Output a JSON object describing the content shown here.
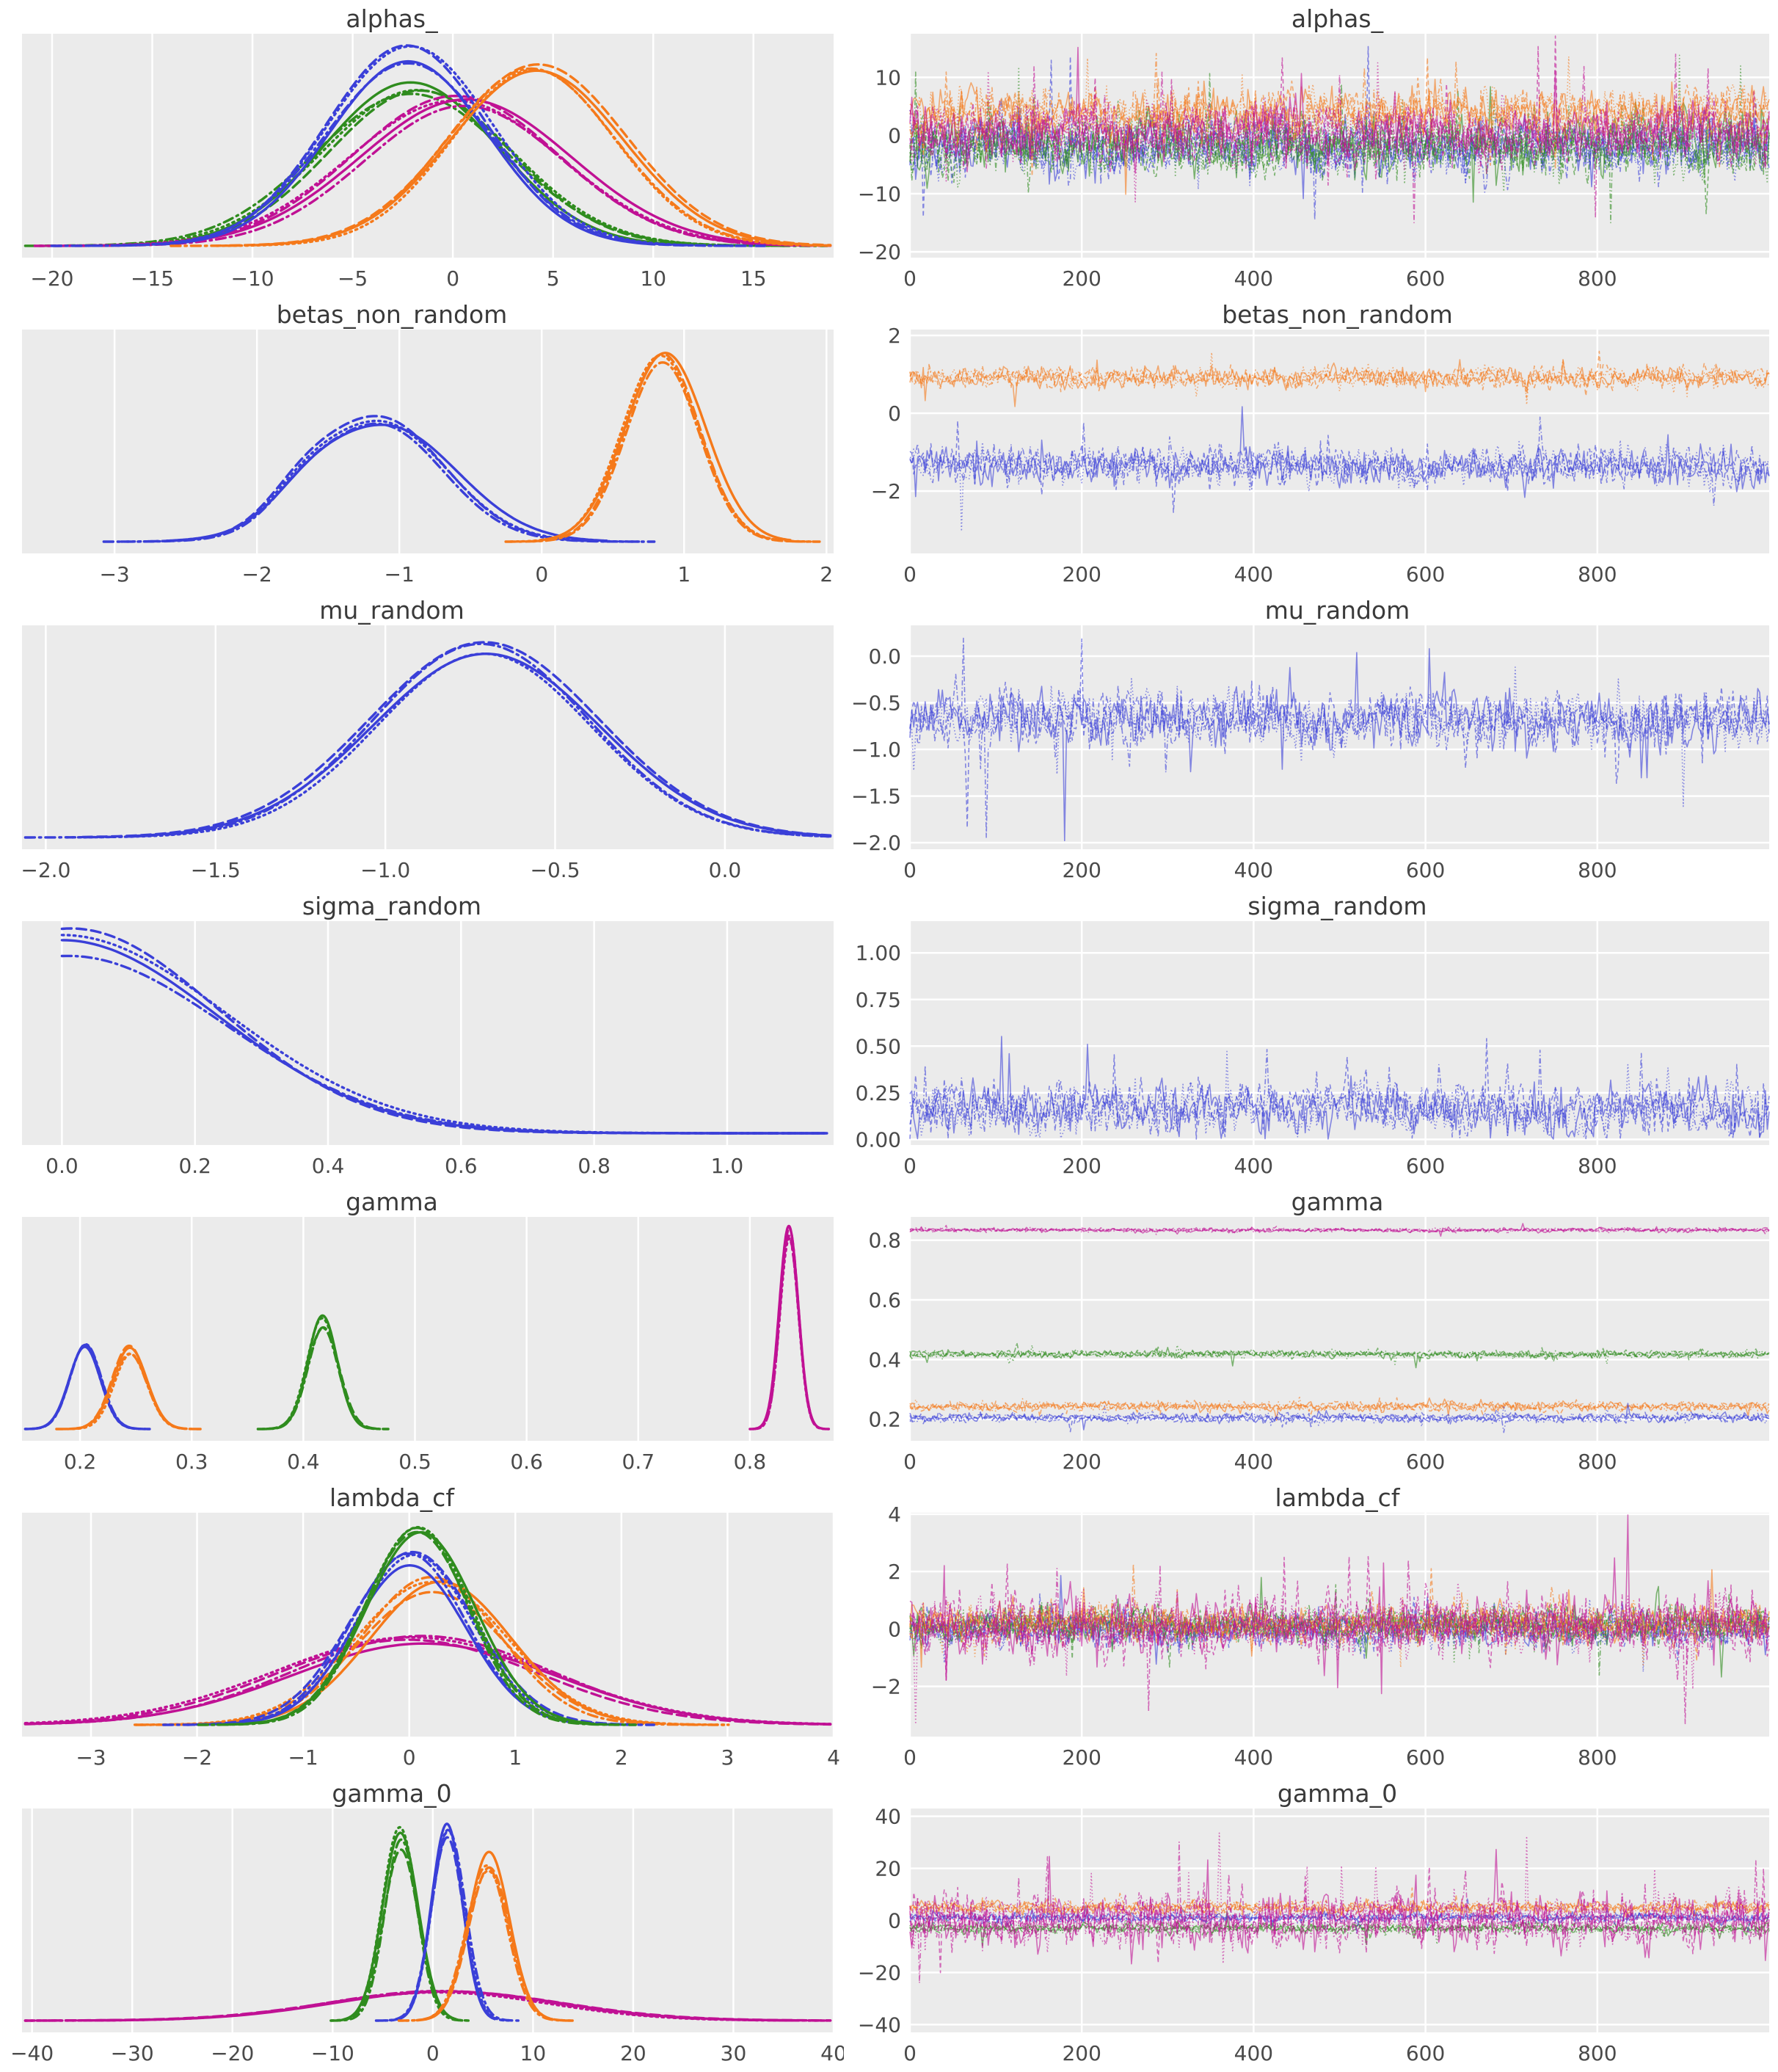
{
  "chart_data": {
    "figure_kind": "mcmc-posterior-kde-and-trace-grid",
    "grid": {
      "rows": 7,
      "cols": 2,
      "left_col": "kernel density estimate",
      "right_col": "sampled trace"
    },
    "palette": {
      "blue": "#3a3fd8",
      "orange": "#f5791a",
      "green": "#2f8c1e",
      "magenta": "#c01194"
    },
    "plot_style": {
      "bg": "#ebebeb",
      "grid": "#ffffff",
      "tick_color": "#4a4a4a",
      "chain_dashes": [
        "solid",
        "dashed",
        "dotted",
        "dashdot"
      ],
      "chains_per_series": 4
    },
    "trace_x": {
      "xlim": [
        0,
        1000
      ],
      "xticks": [
        {
          "v": 0,
          "label": "0"
        },
        {
          "v": 200,
          "label": "200"
        },
        {
          "v": 400,
          "label": "400"
        },
        {
          "v": 600,
          "label": "600"
        },
        {
          "v": 800,
          "label": "800"
        }
      ]
    },
    "rows": [
      {
        "title": "alphas_",
        "kde": {
          "type": "kde",
          "xlim": [
            -21.5,
            19
          ],
          "xticks": [
            {
              "v": -20,
              "label": "−20"
            },
            {
              "v": -15,
              "label": "−15"
            },
            {
              "v": -10,
              "label": "−10"
            },
            {
              "v": -5,
              "label": "−5"
            },
            {
              "v": 0,
              "label": "0"
            },
            {
              "v": 5,
              "label": "5"
            },
            {
              "v": 10,
              "label": "10"
            },
            {
              "v": 15,
              "label": "15"
            }
          ],
          "series": [
            {
              "color": "green",
              "mean": -1.8,
              "sd": 4.6,
              "height": 0.8
            },
            {
              "color": "magenta",
              "mean": 0.3,
              "sd": 5.0,
              "height": 0.74
            },
            {
              "color": "blue",
              "mean": -2.2,
              "sd": 4.0,
              "height": 0.98
            },
            {
              "color": "orange",
              "mean": 4.2,
              "sd": 4.3,
              "height": 0.96
            }
          ]
        },
        "trace": {
          "type": "trace",
          "ylim": [
            -21,
            17.5
          ],
          "yticks": [
            {
              "v": 10,
              "label": "10"
            },
            {
              "v": 0,
              "label": "0"
            },
            {
              "v": -10,
              "label": "−10"
            },
            {
              "v": -20,
              "label": "−20"
            }
          ],
          "series": [
            {
              "color": "blue",
              "mean": -2,
              "amp": 5.0,
              "spike": 0.03
            },
            {
              "color": "green",
              "mean": -1.8,
              "amp": 5.4,
              "spike": 0.03
            },
            {
              "color": "orange",
              "mean": 3.8,
              "amp": 4.8,
              "spike": 0.03
            },
            {
              "color": "magenta",
              "mean": 0.4,
              "amp": 5.2,
              "spike": 0.03
            }
          ]
        }
      },
      {
        "title": "betas_non_random",
        "kde": {
          "type": "kde",
          "xlim": [
            -3.65,
            2.05
          ],
          "xticks": [
            {
              "v": -3,
              "label": "−3"
            },
            {
              "v": -2,
              "label": "−2"
            },
            {
              "v": -1,
              "label": "−1"
            },
            {
              "v": 0,
              "label": "0"
            },
            {
              "v": 1,
              "label": "1"
            },
            {
              "v": 2,
              "label": "2"
            }
          ],
          "series": [
            {
              "color": "blue",
              "mean": -1.12,
              "sd": 0.47,
              "height": 0.62,
              "bump": {
                "offset": -0.55,
                "scale": 0.16,
                "width": 0.5
              }
            },
            {
              "color": "orange",
              "mean": 0.85,
              "sd": 0.27,
              "height": 1.0
            }
          ]
        },
        "trace": {
          "type": "trace",
          "ylim": [
            -3.6,
            2.15
          ],
          "yticks": [
            {
              "v": 2,
              "label": "2"
            },
            {
              "v": 0,
              "label": "0"
            },
            {
              "v": -2,
              "label": "−2"
            }
          ],
          "series": [
            {
              "color": "orange",
              "mean": 0.92,
              "amp": 0.27,
              "spike": 0.03
            },
            {
              "color": "blue",
              "mean": -1.35,
              "amp": 0.5,
              "spike": 0.04
            }
          ]
        }
      },
      {
        "title": "mu_random",
        "kde": {
          "type": "kde",
          "xlim": [
            -2.07,
            0.32
          ],
          "xticks": [
            {
              "v": -2.0,
              "label": "−2.0"
            },
            {
              "v": -1.5,
              "label": "−1.5"
            },
            {
              "v": -1.0,
              "label": "−1.0"
            },
            {
              "v": -0.5,
              "label": "−0.5"
            },
            {
              "v": 0.0,
              "label": "0.0"
            }
          ],
          "series": [
            {
              "color": "blue",
              "mean": -0.7,
              "sd": 0.33,
              "height": 1.0
            }
          ]
        },
        "trace": {
          "type": "trace",
          "ylim": [
            -2.07,
            0.33
          ],
          "yticks": [
            {
              "v": 0.0,
              "label": "0.0"
            },
            {
              "v": -0.5,
              "label": "−0.5"
            },
            {
              "v": -1.0,
              "label": "−1.0"
            },
            {
              "v": -1.5,
              "label": "−1.5"
            },
            {
              "v": -2.0,
              "label": "−2.0"
            }
          ],
          "series": [
            {
              "color": "blue",
              "mean": -0.68,
              "amp": 0.32,
              "spike": 0.03
            }
          ]
        }
      },
      {
        "title": "sigma_random",
        "kde": {
          "type": "kde",
          "xlim": [
            -0.06,
            1.16
          ],
          "shape": "halfnormal",
          "xticks": [
            {
              "v": 0.0,
              "label": "0.0"
            },
            {
              "v": 0.2,
              "label": "0.2"
            },
            {
              "v": 0.4,
              "label": "0.4"
            },
            {
              "v": 0.6,
              "label": "0.6"
            },
            {
              "v": 0.8,
              "label": "0.8"
            },
            {
              "v": 1.0,
              "label": "1.0"
            }
          ],
          "series": [
            {
              "color": "blue",
              "mean": 0.0,
              "sd": 0.235,
              "height": 1.0
            }
          ]
        },
        "trace": {
          "type": "trace",
          "ylim": [
            -0.03,
            1.17
          ],
          "clamp_min": 0.002,
          "yticks": [
            {
              "v": 1.0,
              "label": "1.00"
            },
            {
              "v": 0.75,
              "label": "0.75"
            },
            {
              "v": 0.5,
              "label": "0.50"
            },
            {
              "v": 0.25,
              "label": "0.25"
            },
            {
              "v": 0.0,
              "label": "0.00"
            }
          ],
          "series": [
            {
              "color": "blue",
              "mean": 0.16,
              "amp": 0.14,
              "spike": 0.05,
              "fold": true
            }
          ]
        }
      },
      {
        "title": "gamma",
        "kde": {
          "type": "kde",
          "xlim": [
            0.148,
            0.875
          ],
          "xticks": [
            {
              "v": 0.2,
              "label": "0.2"
            },
            {
              "v": 0.3,
              "label": "0.3"
            },
            {
              "v": 0.4,
              "label": "0.4"
            },
            {
              "v": 0.5,
              "label": "0.5"
            },
            {
              "v": 0.6,
              "label": "0.6"
            },
            {
              "v": 0.7,
              "label": "0.7"
            },
            {
              "v": 0.8,
              "label": "0.8"
            }
          ],
          "series": [
            {
              "color": "blue",
              "mean": 0.205,
              "sd": 0.0145,
              "height": 0.44
            },
            {
              "color": "orange",
              "mean": 0.245,
              "sd": 0.0145,
              "height": 0.42
            },
            {
              "color": "green",
              "mean": 0.417,
              "sd": 0.0135,
              "height": 0.56
            },
            {
              "color": "magenta",
              "mean": 0.835,
              "sd": 0.0085,
              "height": 1.0
            }
          ]
        },
        "trace": {
          "type": "trace",
          "ylim": [
            0.128,
            0.878
          ],
          "yticks": [
            {
              "v": 0.8,
              "label": "0.8"
            },
            {
              "v": 0.6,
              "label": "0.6"
            },
            {
              "v": 0.4,
              "label": "0.4"
            },
            {
              "v": 0.2,
              "label": "0.2"
            }
          ],
          "series": [
            {
              "color": "magenta",
              "mean": 0.834,
              "amp": 0.007,
              "spike": 0.02
            },
            {
              "color": "green",
              "mean": 0.418,
              "amp": 0.013,
              "spike": 0.02
            },
            {
              "color": "orange",
              "mean": 0.243,
              "amp": 0.016,
              "spike": 0.02
            },
            {
              "color": "blue",
              "mean": 0.205,
              "amp": 0.016,
              "spike": 0.02
            }
          ]
        }
      },
      {
        "title": "lambda_cf",
        "kde": {
          "type": "kde",
          "xlim": [
            -3.65,
            4.0
          ],
          "xticks": [
            {
              "v": -3,
              "label": "−3"
            },
            {
              "v": -2,
              "label": "−2"
            },
            {
              "v": -1,
              "label": "−1"
            },
            {
              "v": 0,
              "label": "0"
            },
            {
              "v": 1,
              "label": "1"
            },
            {
              "v": 2,
              "label": "2"
            },
            {
              "v": 3,
              "label": "3"
            },
            {
              "v": 4,
              "label": "4"
            }
          ],
          "series": [
            {
              "color": "magenta",
              "mean": 0.05,
              "sd": 1.25,
              "height": 0.44
            },
            {
              "color": "orange",
              "mean": 0.25,
              "sd": 0.68,
              "height": 0.73
            },
            {
              "color": "blue",
              "mean": 0.02,
              "sd": 0.55,
              "height": 0.87
            },
            {
              "color": "green",
              "mean": 0.1,
              "sd": 0.5,
              "height": 1.0
            }
          ]
        },
        "trace": {
          "type": "trace",
          "ylim": [
            -3.75,
            4.05
          ],
          "yticks": [
            {
              "v": 4,
              "label": "4"
            },
            {
              "v": 2,
              "label": "2"
            },
            {
              "v": 0,
              "label": "0"
            },
            {
              "v": -2,
              "label": "−2"
            }
          ],
          "series": [
            {
              "color": "blue",
              "mean": 0.0,
              "amp": 0.6,
              "spike": 0.03
            },
            {
              "color": "green",
              "mean": 0.15,
              "amp": 0.6,
              "spike": 0.03
            },
            {
              "color": "orange",
              "mean": 0.2,
              "amp": 0.65,
              "spike": 0.03
            },
            {
              "color": "magenta",
              "mean": 0.1,
              "amp": 1.05,
              "spike": 0.05
            }
          ]
        }
      },
      {
        "title": "gamma_0",
        "kde": {
          "type": "kde",
          "xlim": [
            -41,
            40
          ],
          "xticks": [
            {
              "v": -40,
              "label": "−40"
            },
            {
              "v": -30,
              "label": "−30"
            },
            {
              "v": -20,
              "label": "−20"
            },
            {
              "v": -10,
              "label": "−10"
            },
            {
              "v": 0,
              "label": "0"
            },
            {
              "v": 10,
              "label": "10"
            },
            {
              "v": 20,
              "label": "20"
            },
            {
              "v": 30,
              "label": "30"
            },
            {
              "v": 40,
              "label": "40"
            }
          ],
          "series": [
            {
              "color": "magenta",
              "mean": 1.0,
              "sd": 11.5,
              "height": 0.145
            },
            {
              "color": "green",
              "mean": -3.2,
              "sd": 1.7,
              "height": 0.95
            },
            {
              "color": "blue",
              "mean": 1.5,
              "sd": 1.6,
              "height": 1.0
            },
            {
              "color": "orange",
              "mean": 5.5,
              "sd": 2.0,
              "height": 0.84
            }
          ]
        },
        "trace": {
          "type": "trace",
          "ylim": [
            -43,
            43
          ],
          "yticks": [
            {
              "v": 40,
              "label": "40"
            },
            {
              "v": 20,
              "label": "20"
            },
            {
              "v": 0,
              "label": "0"
            },
            {
              "v": -20,
              "label": "−20"
            },
            {
              "v": -40,
              "label": "−40"
            }
          ],
          "series": [
            {
              "color": "green",
              "mean": -3.0,
              "amp": 2.0,
              "spike": 0.03
            },
            {
              "color": "blue",
              "mean": 1.0,
              "amp": 2.0,
              "spike": 0.03
            },
            {
              "color": "orange",
              "mean": 5.0,
              "amp": 2.6,
              "spike": 0.03
            },
            {
              "color": "magenta",
              "mean": 0.5,
              "amp": 10.0,
              "spike": 0.05
            }
          ]
        }
      }
    ]
  }
}
